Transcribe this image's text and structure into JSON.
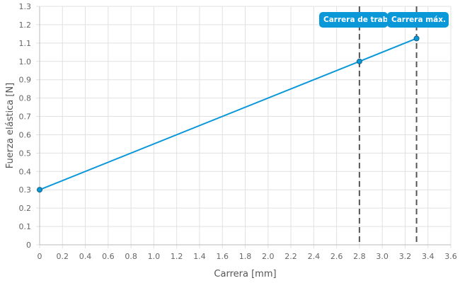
{
  "chart_data": {
    "type": "line",
    "xlabel": "Carrera [mm]",
    "ylabel": "Fuerza elástica [N]",
    "xlim": [
      0,
      3.6
    ],
    "ylim": [
      0,
      1.3
    ],
    "x_ticks": [
      "0",
      "0.2",
      "0.4",
      "0.6",
      "0.8",
      "1.0",
      "1.2",
      "1.4",
      "1.6",
      "1.8",
      "2.0",
      "2.2",
      "2.4",
      "2.6",
      "2.8",
      "3.0",
      "3.2",
      "3.4",
      "3.6"
    ],
    "y_ticks": [
      "0",
      "0.1",
      "0.2",
      "0.3",
      "0.4",
      "0.5",
      "0.6",
      "0.7",
      "0.8",
      "0.9",
      "1.0",
      "1.1",
      "1.2",
      "1.3"
    ],
    "grid": true,
    "series": [
      {
        "x": [
          0,
          2.8,
          3.3
        ],
        "y": [
          0.3,
          1.0,
          1.125
        ],
        "color": "#0b98d8"
      }
    ],
    "annotations": [
      {
        "x": 2.8,
        "label": "Carrera de trabajo",
        "style": "dashed vertical line"
      },
      {
        "x": 3.3,
        "label": "Carrera máx.",
        "style": "dashed vertical line"
      }
    ]
  }
}
